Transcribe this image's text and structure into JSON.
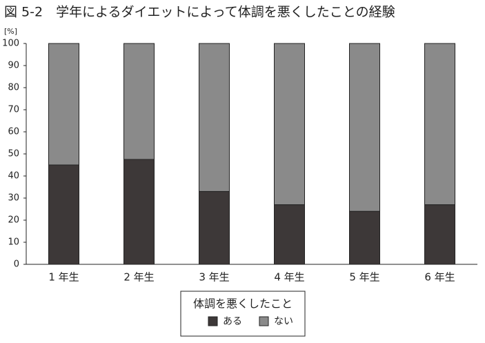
{
  "chart_data": {
    "type": "stacked_bar",
    "title": "図 5-2　学年によるダイエットによって体調を悪くしたことの経験",
    "y_label": "[%]",
    "categories": [
      "1 年生",
      "2 年生",
      "3 年生",
      "4 年生",
      "5 年生",
      "6 年生"
    ],
    "legend_title": "体調を悪くしたこと",
    "series": [
      {
        "name": "ある",
        "color": "#3d3838",
        "values": [
          45,
          47.5,
          33,
          27,
          24,
          27
        ]
      },
      {
        "name": "ない",
        "color": "#8a8a8a",
        "values": [
          55,
          52.5,
          67,
          73,
          76,
          73
        ]
      }
    ],
    "ylim": [
      0,
      100
    ],
    "yticks": [
      0,
      10,
      20,
      30,
      40,
      50,
      60,
      70,
      80,
      90,
      100
    ],
    "legend_position": "bottom"
  }
}
